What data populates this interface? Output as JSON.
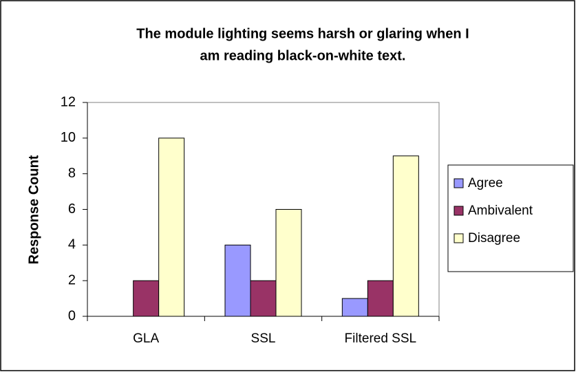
{
  "chart_data": {
    "type": "bar",
    "title": [
      "The module lighting seems harsh or glaring when I",
      "am reading black-on-white text."
    ],
    "y_label": "Response Count",
    "categories": [
      "GLA",
      "SSL",
      "Filtered SSL"
    ],
    "series": [
      {
        "name": "Agree",
        "color": "#9999ff",
        "values": [
          0,
          4,
          1
        ]
      },
      {
        "name": "Ambivalent",
        "color": "#993366",
        "values": [
          2,
          2,
          2
        ]
      },
      {
        "name": "Disagree",
        "color": "#ffffcc",
        "values": [
          10,
          6,
          9
        ]
      }
    ],
    "ylim": [
      0,
      12
    ],
    "yticks": [
      0,
      2,
      4,
      6,
      8,
      10,
      12
    ],
    "grid": false,
    "legend": "right"
  }
}
